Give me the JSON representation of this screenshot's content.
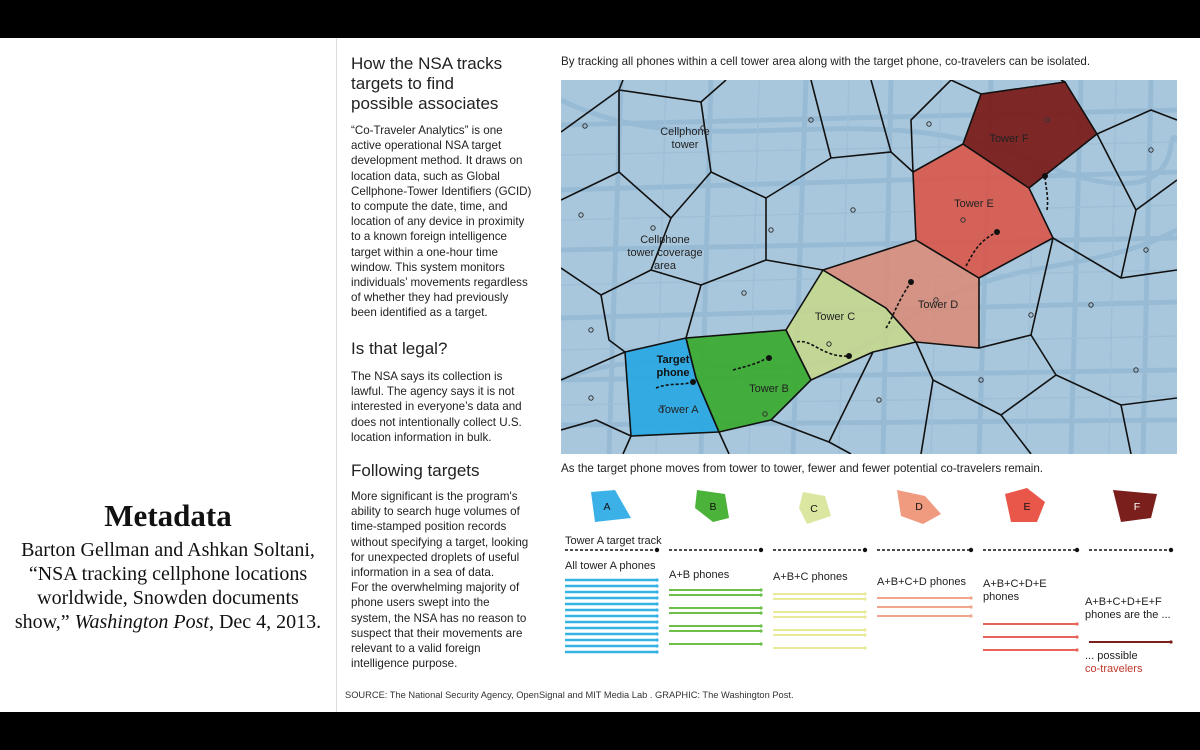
{
  "metadata": {
    "title": "Metadata",
    "citation_authors": "Barton Gellman and Ashkan Soltani, “NSA tracking cellphone locations worldwide, Snowden documents show,”",
    "citation_publication": "Washington Post",
    "citation_date": ", Dec 4, 2013."
  },
  "graphic": {
    "heading": [
      "How the NSA tracks",
      "targets to find",
      "possible associates"
    ],
    "intro": [
      "“Co-Traveler Analytics” is one",
      "active operational NSA target",
      "development method. It draws on",
      "location data, such as Global",
      "Cellphone-Tower Identifiers (GCID)",
      "to compute the date, time, and",
      "location of any device in proximity",
      "to a known foreign intelligence",
      "target within a one-hour time",
      "window. This system monitors",
      "individuals’ movements regardless",
      "of whether they had previously",
      "been identified as a target."
    ],
    "legal_heading": "Is that legal?",
    "legal_text": [
      "The NSA says its collection is",
      "lawful. The agency says it is not",
      "interested in everyone’s data and",
      "does not intentionally collect U.S.",
      "location information in bulk."
    ],
    "following_heading": "Following targets",
    "following_text": [
      "More significant is the program's",
      "ability to search huge volumes of",
      "time-stamped position records",
      "without specifying a target, looking",
      "for unexpected droplets of useful",
      "information in a sea of data.",
      "For the overwhelming majority of",
      "phone users swept into the",
      "system, the NSA has no reason to",
      "suspect that their movements are",
      "relevant to a valid foreign",
      "intelligence purpose."
    ],
    "source": "SOURCE: The National Security Agency, OpenSignal and MIT Media Lab . GRAPHIC: The Washington Post.",
    "map_caption": "By tracking all phones within a cell tower area along with the target phone, co-travelers can be isolated.",
    "bottom_caption": "As the target phone moves from tower to tower, fewer and fewer potential co-travelers remain."
  },
  "map": {
    "label_cellphone_tower": [
      "Cellphone",
      "tower"
    ],
    "label_coverage": [
      "Cellphone",
      "tower coverage",
      "area"
    ],
    "label_target": [
      "Target",
      "phone"
    ],
    "towers": [
      "Tower A",
      "Tower B",
      "Tower C",
      "Tower D",
      "Tower E",
      "Tower F"
    ],
    "colors": {
      "map_bg": "#a9c7dc",
      "road": "#8fb5d1",
      "A": "#29a8e2",
      "B": "#3aa92e",
      "C": "#c7d88a",
      "D": "#d98c78",
      "E": "#d9574a",
      "F": "#7a1f1c"
    }
  },
  "sequence": {
    "shape_letters": [
      "A",
      "B",
      "C",
      "D",
      "E",
      "F"
    ],
    "track_label": "Tower A target track",
    "phone_labels": [
      "All tower A phones",
      "A+B phones",
      "A+B+C phones",
      "A+B+C+D phones",
      [
        "A+B+C+D+E",
        "phones"
      ],
      [
        "A+B+C+D+E+F",
        "phones are the ..."
      ]
    ],
    "possible_label": "... possible",
    "cotravelers_label": "co-travelers",
    "line_counts": [
      13,
      7,
      7,
      3,
      3,
      1
    ],
    "line_colors": [
      "#35b3e6",
      "#6cc04a",
      "#e8ea9a",
      "#f0a58c",
      "#e8645a",
      "#7a1f1c"
    ],
    "shape_colors": [
      "#3cb1e8",
      "#4cb33a",
      "#dbe7a0",
      "#f09a80",
      "#e8574a",
      "#7a1f1c"
    ],
    "cotravelers_color": "#c0392b"
  }
}
